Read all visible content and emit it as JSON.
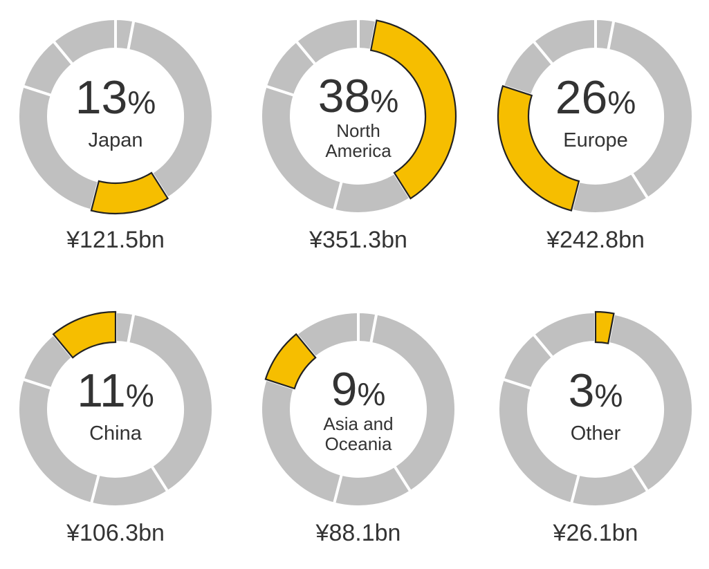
{
  "colors": {
    "highlight": "#F6BE00",
    "base": "#C0C0C0",
    "segment_stroke": "#ffffff",
    "highlight_stroke": "#222222",
    "text": "#333333"
  },
  "chart_data": {
    "type": "pie",
    "style": "donut",
    "categories": [
      "Japan",
      "North America",
      "Europe",
      "China",
      "Asia and Oceania",
      "Other"
    ],
    "values": [
      13,
      38,
      26,
      11,
      9,
      3
    ],
    "unit": "%",
    "order_clockwise_from_top": [
      "Other",
      "North America",
      "Japan",
      "Europe",
      "Asia and Oceania",
      "China"
    ],
    "charts": [
      {
        "name": "Japan",
        "label_lines": [
          "Japan"
        ],
        "percent_text": "13",
        "percent_sign": "%",
        "value": 13,
        "amount": "¥121.5bn"
      },
      {
        "name": "North America",
        "label_lines": [
          "North",
          "America"
        ],
        "percent_text": "38",
        "percent_sign": "%",
        "value": 38,
        "amount": "¥351.3bn"
      },
      {
        "name": "Europe",
        "label_lines": [
          "Europe"
        ],
        "percent_text": "26",
        "percent_sign": "%",
        "value": 26,
        "amount": "¥242.8bn"
      },
      {
        "name": "China",
        "label_lines": [
          "China"
        ],
        "percent_text": "11",
        "percent_sign": "%",
        "value": 11,
        "amount": "¥106.3bn"
      },
      {
        "name": "Asia and Oceania",
        "label_lines": [
          "Asia and",
          "Oceania"
        ],
        "percent_text": "9",
        "percent_sign": "%",
        "value": 9,
        "amount": "¥88.1bn"
      },
      {
        "name": "Other",
        "label_lines": [
          "Other"
        ],
        "percent_text": "3",
        "percent_sign": "%",
        "value": 3,
        "amount": "¥26.1bn"
      }
    ]
  }
}
